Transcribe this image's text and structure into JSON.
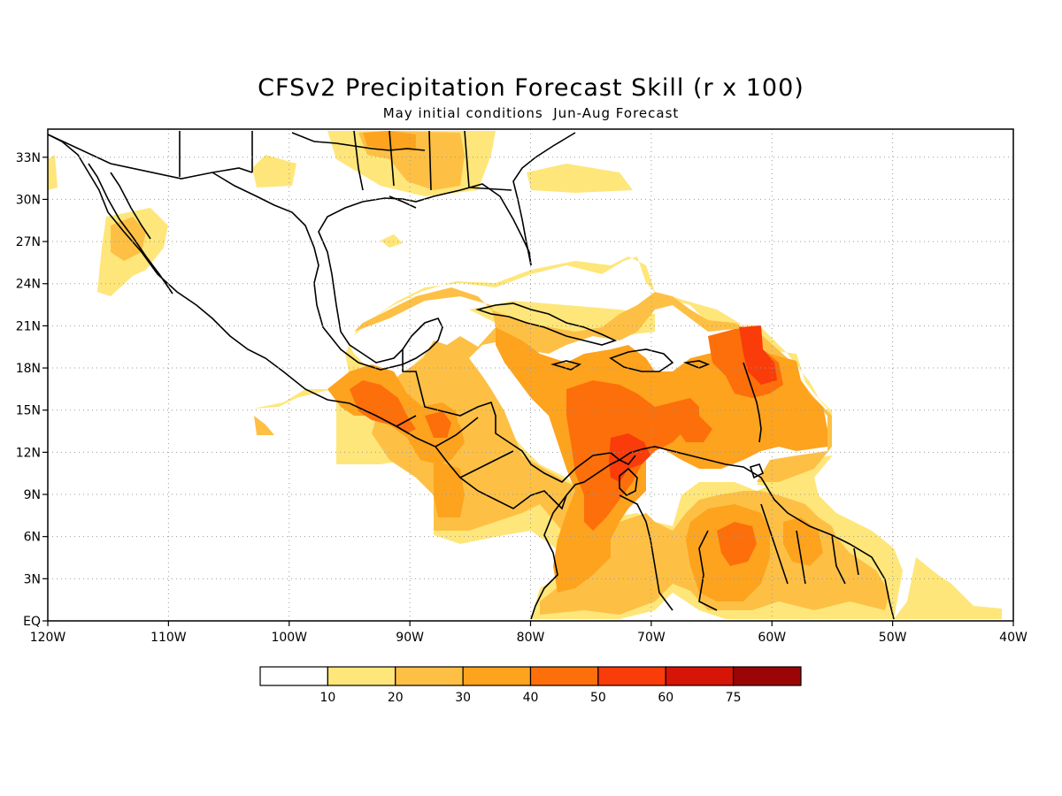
{
  "title": "CFSv2 Precipitation Forecast Skill (r x 100)",
  "subtitle": "May initial conditions  Jun-Aug Forecast",
  "map": {
    "lon_range": [
      -120,
      -40
    ],
    "lat_range": [
      0,
      35
    ],
    "lon_ticks": [
      {
        "value": -120,
        "label": "120W"
      },
      {
        "value": -110,
        "label": "110W"
      },
      {
        "value": -100,
        "label": "100W"
      },
      {
        "value": -90,
        "label": "90W"
      },
      {
        "value": -80,
        "label": "80W"
      },
      {
        "value": -70,
        "label": "70W"
      },
      {
        "value": -60,
        "label": "60W"
      },
      {
        "value": -50,
        "label": "50W"
      },
      {
        "value": -40,
        "label": "40W"
      }
    ],
    "lat_ticks": [
      {
        "value": 0,
        "label": "EQ"
      },
      {
        "value": 3,
        "label": "3N"
      },
      {
        "value": 6,
        "label": "6N"
      },
      {
        "value": 9,
        "label": "9N"
      },
      {
        "value": 12,
        "label": "12N"
      },
      {
        "value": 15,
        "label": "15N"
      },
      {
        "value": 18,
        "label": "18N"
      },
      {
        "value": 21,
        "label": "21N"
      },
      {
        "value": 24,
        "label": "24N"
      },
      {
        "value": 27,
        "label": "27N"
      },
      {
        "value": 30,
        "label": "30N"
      },
      {
        "value": 33,
        "label": "33N"
      }
    ],
    "grid": "dotted"
  },
  "colorbar": {
    "colors": [
      "#ffffff",
      "#fee67a",
      "#fdc045",
      "#fda31e",
      "#fd6f0a",
      "#f93c0a",
      "#d61408",
      "#9b0505"
    ],
    "labels": [
      "10",
      "20",
      "30",
      "40",
      "50",
      "60",
      "75"
    ]
  },
  "chart_data": {
    "type": "heatmap",
    "title": "CFSv2 Precipitation Forecast Skill (r x 100)",
    "subtitle": "May initial conditions  Jun-Aug Forecast",
    "xlim": [
      -120,
      -40
    ],
    "ylim": [
      0,
      35
    ],
    "levels": [
      10,
      20,
      30,
      40,
      50,
      60,
      75
    ],
    "skill_regions": [
      {
        "region": "Caribbean Sea core (72-76W, 11-13N)",
        "level": "50-60"
      },
      {
        "region": "Eastern Caribbean / Lesser Antilles (60-62W, 16-20N)",
        "level": "50-60"
      },
      {
        "region": "Central Caribbean (65-78W, 10-18N)",
        "level": "40-50"
      },
      {
        "region": "Southern Mexico / Guatemala (90-93W, 13-17N)",
        "level": "40-50"
      },
      {
        "region": "Venezuela / Guyana interior (62-65W, 3-6N)",
        "level": "40-50"
      },
      {
        "region": "Northern Colombia (74-78W, 6-10N)",
        "level": "40-50"
      },
      {
        "region": "Eastern Pacific off Central America (86-90W, 6-12N)",
        "level": "30-40"
      },
      {
        "region": "Gulf of Mexico northeast / US Southeast (85-92W, 30-35N)",
        "level": "20-30"
      },
      {
        "region": "Baja California (112-117W, 24-29N)",
        "level": "10-30"
      },
      {
        "region": "Tropical Atlantic off Brazil (42-50W, 0-4N)",
        "level": "10-30"
      }
    ]
  }
}
